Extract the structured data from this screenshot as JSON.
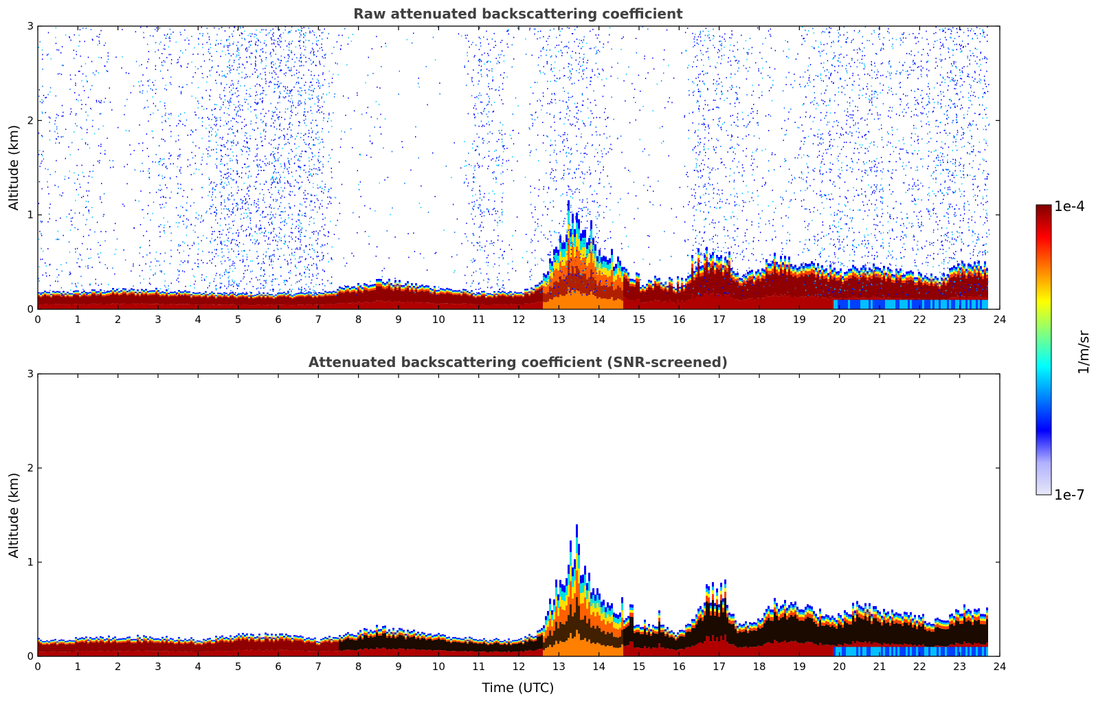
{
  "chart_data": [
    {
      "type": "heatmap",
      "title": "Raw attenuated backscattering coefficient",
      "xlabel": "",
      "ylabel": "Altitude (km)",
      "xlim": [
        0,
        24
      ],
      "ylim": [
        0,
        3
      ],
      "x_ticks": [
        "0",
        "1",
        "2",
        "3",
        "4",
        "5",
        "6",
        "7",
        "8",
        "9",
        "10",
        "11",
        "12",
        "13",
        "14",
        "15",
        "16",
        "17",
        "18",
        "19",
        "20",
        "21",
        "22",
        "23",
        "24"
      ],
      "y_ticks": [
        "0",
        "1",
        "2",
        "3"
      ],
      "data_end_hour": 23.7,
      "aerosol_layer_top_km": [
        [
          0,
          0.17
        ],
        [
          1,
          0.18
        ],
        [
          2,
          0.2
        ],
        [
          3,
          0.2
        ],
        [
          4,
          0.17
        ],
        [
          5,
          0.16
        ],
        [
          6,
          0.16
        ],
        [
          7,
          0.17
        ],
        [
          8,
          0.25
        ],
        [
          8.5,
          0.3
        ],
        [
          9,
          0.27
        ],
        [
          10,
          0.22
        ],
        [
          11,
          0.17
        ],
        [
          12,
          0.17
        ],
        [
          12.5,
          0.25
        ],
        [
          13,
          0.7
        ],
        [
          13.4,
          0.95
        ],
        [
          14,
          0.55
        ],
        [
          14.5,
          0.45
        ],
        [
          15,
          0.25
        ],
        [
          15.5,
          0.3
        ],
        [
          16,
          0.22
        ],
        [
          16.5,
          0.5
        ],
        [
          17,
          0.55
        ],
        [
          17.5,
          0.32
        ],
        [
          18,
          0.4
        ],
        [
          18.3,
          0.55
        ],
        [
          19,
          0.45
        ],
        [
          19.5,
          0.45
        ],
        [
          20,
          0.38
        ],
        [
          20.5,
          0.45
        ],
        [
          21,
          0.42
        ],
        [
          22,
          0.35
        ],
        [
          22.5,
          0.32
        ],
        [
          23,
          0.45
        ],
        [
          23.7,
          0.45
        ]
      ],
      "noise_density": [
        [
          0,
          0.3
        ],
        [
          1.5,
          0.3
        ],
        [
          2,
          0.05
        ],
        [
          3,
          0.35
        ],
        [
          4,
          0.5
        ],
        [
          4.5,
          0.85
        ],
        [
          7,
          0.85
        ],
        [
          7.5,
          0.1
        ],
        [
          9,
          0.08
        ],
        [
          10.5,
          0.05
        ],
        [
          11,
          0.6
        ],
        [
          11.5,
          0.5
        ],
        [
          12,
          0.05
        ],
        [
          12.7,
          0.5
        ],
        [
          13.5,
          0.55
        ],
        [
          14.5,
          0.15
        ],
        [
          16,
          0.05
        ],
        [
          16.5,
          0.55
        ],
        [
          17.5,
          0.5
        ],
        [
          18,
          0.25
        ],
        [
          19,
          0.2
        ],
        [
          19.5,
          0.6
        ],
        [
          22,
          0.55
        ],
        [
          23,
          0.65
        ],
        [
          23.7,
          0.6
        ]
      ]
    },
    {
      "type": "heatmap",
      "title": "Attenuated backscattering coefficient (SNR-screened)",
      "xlabel": "Time (UTC)",
      "ylabel": "Altitude (km)",
      "xlim": [
        0,
        24
      ],
      "ylim": [
        0,
        3
      ],
      "x_ticks": [
        "0",
        "1",
        "2",
        "3",
        "4",
        "5",
        "6",
        "7",
        "8",
        "9",
        "10",
        "11",
        "12",
        "13",
        "14",
        "15",
        "16",
        "17",
        "18",
        "19",
        "20",
        "21",
        "22",
        "23",
        "24"
      ],
      "y_ticks": [
        "0",
        "1",
        "2",
        "3"
      ],
      "data_end_hour": 23.7,
      "aerosol_layer_top_km": [
        [
          0,
          0.17
        ],
        [
          1,
          0.18
        ],
        [
          2,
          0.2
        ],
        [
          3,
          0.2
        ],
        [
          4,
          0.17
        ],
        [
          5,
          0.22
        ],
        [
          6,
          0.22
        ],
        [
          7,
          0.17
        ],
        [
          8,
          0.25
        ],
        [
          8.5,
          0.3
        ],
        [
          9,
          0.27
        ],
        [
          10,
          0.22
        ],
        [
          11,
          0.17
        ],
        [
          12,
          0.17
        ],
        [
          12.5,
          0.25
        ],
        [
          13,
          0.7
        ],
        [
          13.4,
          1.0
        ],
        [
          14,
          0.6
        ],
        [
          14.5,
          0.45
        ],
        [
          15,
          0.3
        ],
        [
          15.5,
          0.32
        ],
        [
          16,
          0.22
        ],
        [
          16.5,
          0.5
        ],
        [
          17,
          0.6
        ],
        [
          17.5,
          0.32
        ],
        [
          18,
          0.4
        ],
        [
          18.3,
          0.55
        ],
        [
          19,
          0.5
        ],
        [
          19.5,
          0.45
        ],
        [
          20,
          0.42
        ],
        [
          20.5,
          0.55
        ],
        [
          21,
          0.45
        ],
        [
          22,
          0.4
        ],
        [
          22.5,
          0.35
        ],
        [
          23,
          0.48
        ],
        [
          23.7,
          0.48
        ]
      ],
      "noise_density": [
        [
          0,
          0.02
        ],
        [
          4,
          0.02
        ],
        [
          5,
          0.05
        ],
        [
          6.5,
          0.05
        ],
        [
          7.5,
          0.01
        ],
        [
          24,
          0.01
        ]
      ]
    }
  ],
  "colorbar": {
    "label": "1/m/sr",
    "max_label": "1e-4",
    "min_label": "1e-7",
    "scale": "log",
    "colormap": "jet",
    "colors": [
      "#e8e8f8",
      "#b0b0ff",
      "#0000ff",
      "#0080ff",
      "#00ffff",
      "#80ff80",
      "#ffff00",
      "#ff8000",
      "#ff0000",
      "#800000"
    ]
  }
}
